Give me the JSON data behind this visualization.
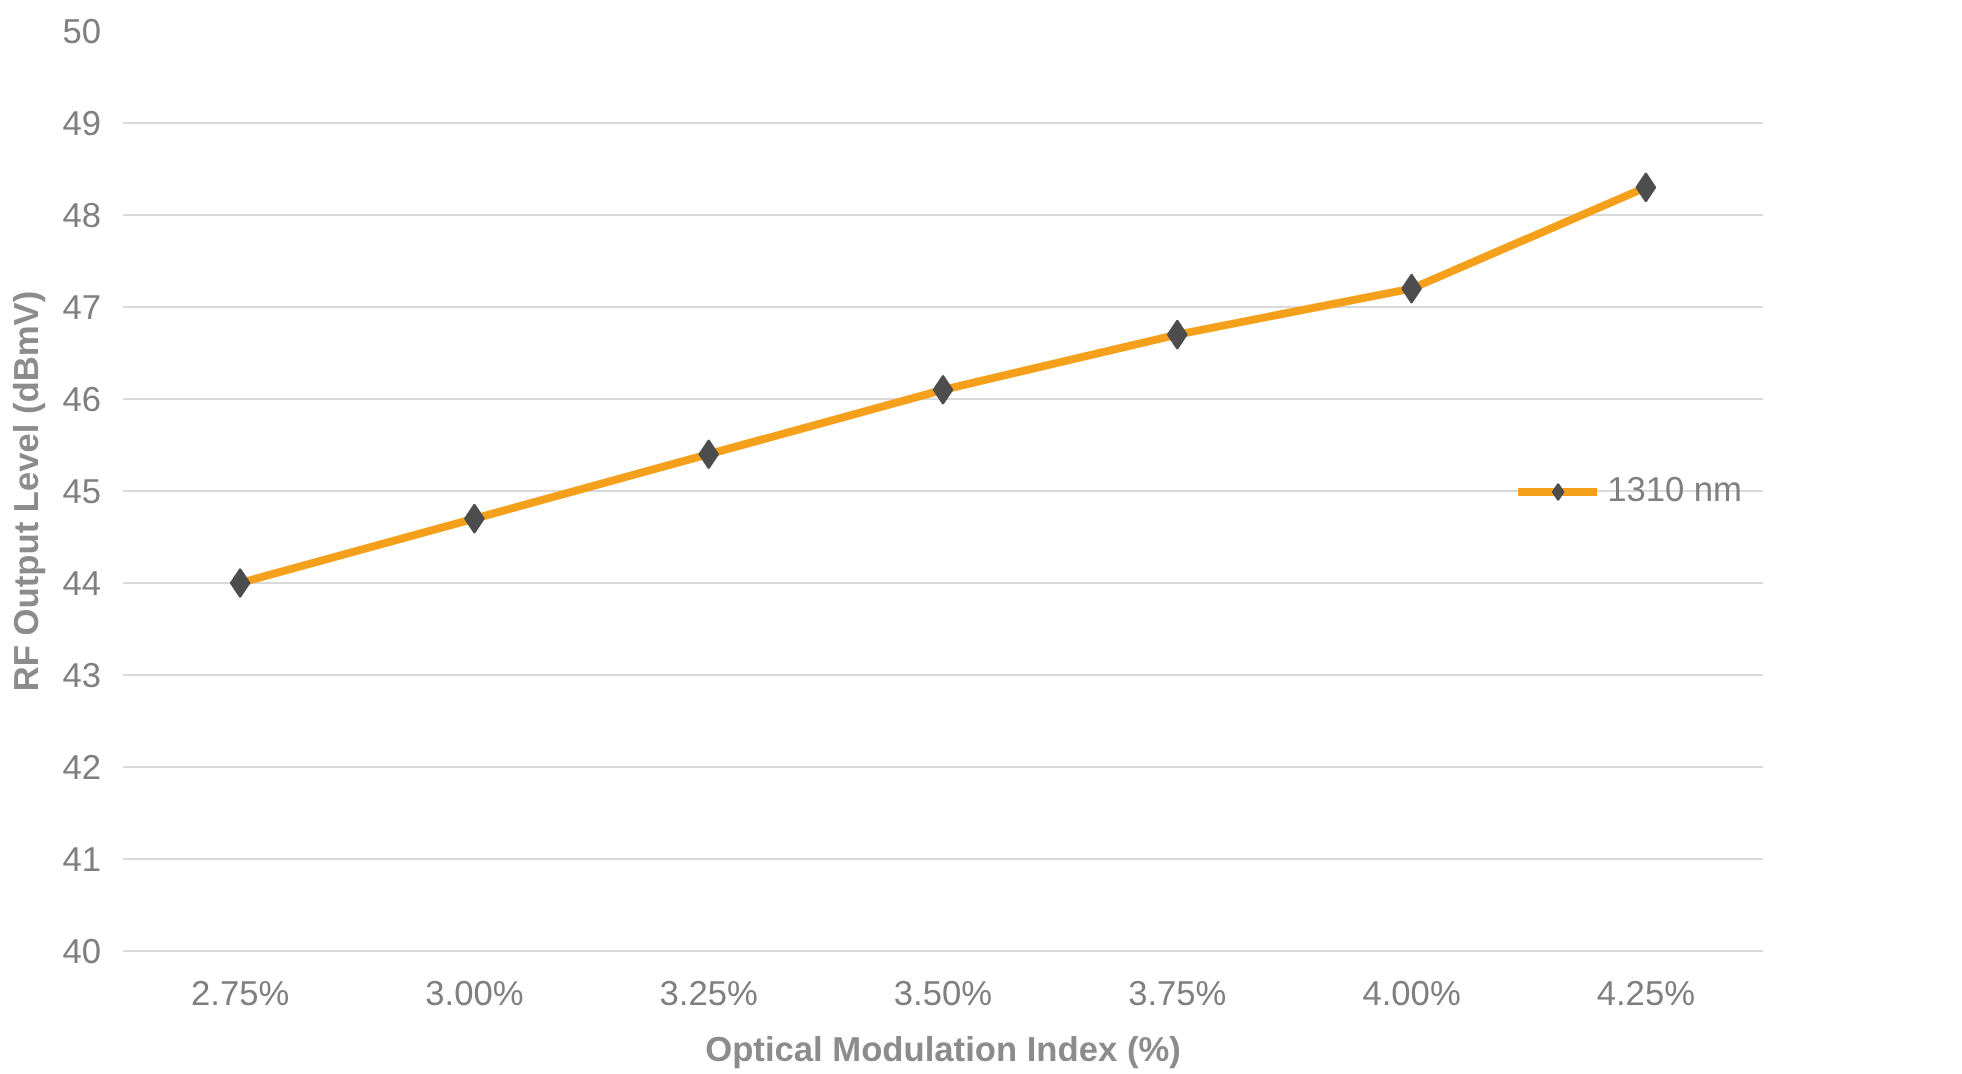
{
  "chart_data": {
    "type": "line",
    "xlabel": "Optical Modulation Index (%)",
    "ylabel": "RF Output Level (dBmV)",
    "categories": [
      "2.75%",
      "3.00%",
      "3.25%",
      "3.50%",
      "3.75%",
      "4.00%",
      "4.25%"
    ],
    "series": [
      {
        "name": "1310 nm",
        "color": "#f5a01a",
        "values": [
          44.0,
          44.7,
          45.4,
          46.1,
          46.7,
          47.2,
          48.3
        ]
      }
    ],
    "ylim": [
      40,
      50
    ],
    "yticks": [
      40,
      41,
      42,
      43,
      44,
      45,
      46,
      47,
      48,
      49,
      50
    ],
    "grid": "y",
    "legend": "right",
    "marker": "diamond",
    "line_style": "solid"
  }
}
